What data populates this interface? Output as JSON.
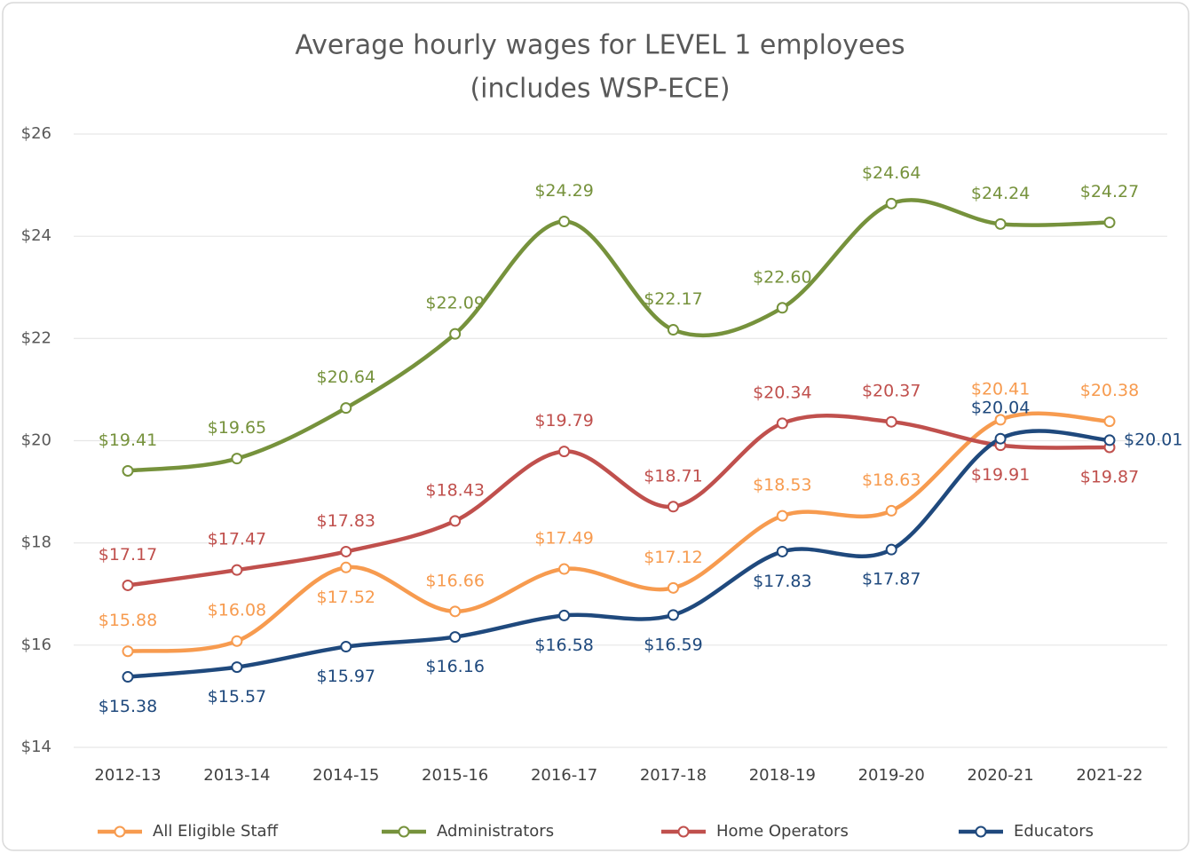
{
  "chart_data": {
    "type": "line",
    "title": "Average hourly wages for LEVEL 1 employees",
    "subtitle": "(includes WSP-ECE)",
    "categories": [
      "2012-13",
      "2013-14",
      "2014-15",
      "2015-16",
      "2016-17",
      "2017-18",
      "2018-19",
      "2019-20",
      "2020-21",
      "2021-22"
    ],
    "series": [
      {
        "name": "All Eligible Staff",
        "color": "#f79b4f",
        "values": [
          15.88,
          16.08,
          17.52,
          16.66,
          17.49,
          17.12,
          18.53,
          18.63,
          20.41,
          20.38
        ],
        "value_labels": [
          "$15.88",
          "$16.08",
          "$17.52",
          "$16.66",
          "$17.49",
          "$17.12",
          "$18.53",
          "$18.63",
          "$20.41",
          "$20.38"
        ]
      },
      {
        "name": "Administrators",
        "color": "#76923c",
        "values": [
          19.41,
          19.65,
          20.64,
          22.09,
          24.29,
          22.17,
          22.6,
          24.64,
          24.24,
          24.27
        ],
        "value_labels": [
          "$19.41",
          "$19.65",
          "$20.64",
          "$22.09",
          "$24.29",
          "$22.17",
          "$22.60",
          "$24.64",
          "$24.24",
          "$24.27"
        ]
      },
      {
        "name": "Home Operators",
        "color": "#c0504d",
        "values": [
          17.17,
          17.47,
          17.83,
          18.43,
          19.79,
          18.71,
          20.34,
          20.37,
          19.91,
          19.87
        ],
        "value_labels": [
          "$17.17",
          "$17.47",
          "$17.83",
          "$18.43",
          "$19.79",
          "$18.71",
          "$20.34",
          "$20.37",
          "$19.91",
          "$19.87"
        ]
      },
      {
        "name": "Educators",
        "color": "#1f497d",
        "values": [
          15.38,
          15.57,
          15.97,
          16.16,
          16.58,
          16.59,
          17.83,
          17.87,
          20.04,
          20.01
        ],
        "value_labels": [
          "$15.38",
          "$15.57",
          "$15.97",
          "$16.16",
          "$16.58",
          "$16.59",
          "$17.83",
          "$17.87",
          "$20.04",
          "$20.01"
        ]
      }
    ],
    "ylim": [
      14,
      26
    ],
    "yticks": [
      {
        "value": 14,
        "label": "$14"
      },
      {
        "value": 16,
        "label": "$16"
      },
      {
        "value": 18,
        "label": "$18"
      },
      {
        "value": 20,
        "label": "$20"
      },
      {
        "value": 22,
        "label": "$22"
      },
      {
        "value": 24,
        "label": "$24"
      },
      {
        "value": 26,
        "label": "$26"
      }
    ],
    "grid": true,
    "legend": "bottom"
  }
}
